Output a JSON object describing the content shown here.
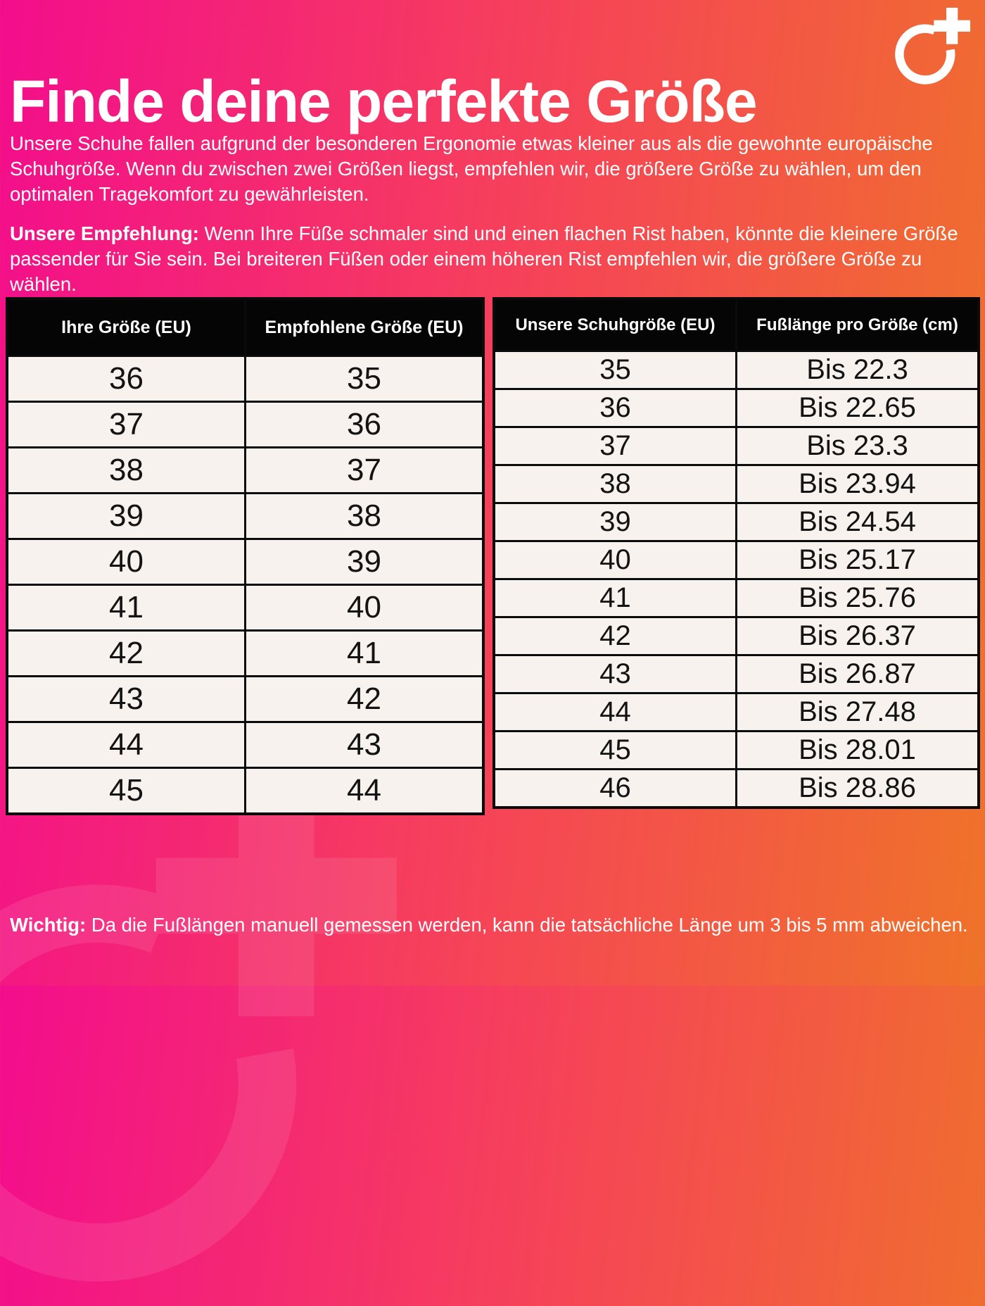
{
  "page": {
    "title": "Finde deine perfekte Größe",
    "intro": "Unsere Schuhe fallen aufgrund der besonderen Ergonomie etwas kleiner aus als die gewohnte europäische Schuhgröße. Wenn du zwischen zwei Größen liegst, empfehlen wir, die größere Größe zu wählen, um den optimalen Tragekomfort zu gewährleisten.",
    "recommendation_label": "Unsere Empfehlung:",
    "recommendation_text": " Wenn Ihre Füße schmaler sind und einen flachen Rist haben, könnte die kleinere Größe passender für Sie sein. Bei breiteren Füßen oder einem höheren Rist empfehlen wir, die größere Größe zu wählen.",
    "note_label": "Wichtig:",
    "note_text": " Da die Fußlängen manuell gemessen werden, kann die tatsächliche Länge um 3 bis 5 mm abweichen."
  },
  "logo": {
    "name": "circle-plus-logo"
  },
  "colors": {
    "gradient_start": "#f30d8c",
    "gradient_mid": "#f6415a",
    "gradient_end": "#ef7329",
    "table_header_bg": "#050505",
    "table_header_text": "#ffffff",
    "table_cell_bg": "#f8f2ee",
    "table_border": "#0b0b0b",
    "text": "#ffffff"
  },
  "size_table": {
    "headers": [
      "Ihre Größe (EU)",
      "Empfohlene Größe (EU)"
    ],
    "rows": [
      [
        "36",
        "35"
      ],
      [
        "37",
        "36"
      ],
      [
        "38",
        "37"
      ],
      [
        "39",
        "38"
      ],
      [
        "40",
        "39"
      ],
      [
        "41",
        "40"
      ],
      [
        "42",
        "41"
      ],
      [
        "43",
        "42"
      ],
      [
        "44",
        "43"
      ],
      [
        "45",
        "44"
      ]
    ]
  },
  "length_table": {
    "headers": [
      "Unsere Schuhgröße (EU)",
      "Fußlänge pro Größe (cm)"
    ],
    "rows": [
      [
        "35",
        "Bis 22.3"
      ],
      [
        "36",
        "Bis 22.65"
      ],
      [
        "37",
        "Bis 23.3"
      ],
      [
        "38",
        "Bis 23.94"
      ],
      [
        "39",
        "Bis 24.54"
      ],
      [
        "40",
        "Bis 25.17"
      ],
      [
        "41",
        "Bis 25.76"
      ],
      [
        "42",
        "Bis 26.37"
      ],
      [
        "43",
        "Bis 26.87"
      ],
      [
        "44",
        "Bis 27.48"
      ],
      [
        "45",
        "Bis 28.01"
      ],
      [
        "46",
        "Bis 28.86"
      ]
    ]
  }
}
